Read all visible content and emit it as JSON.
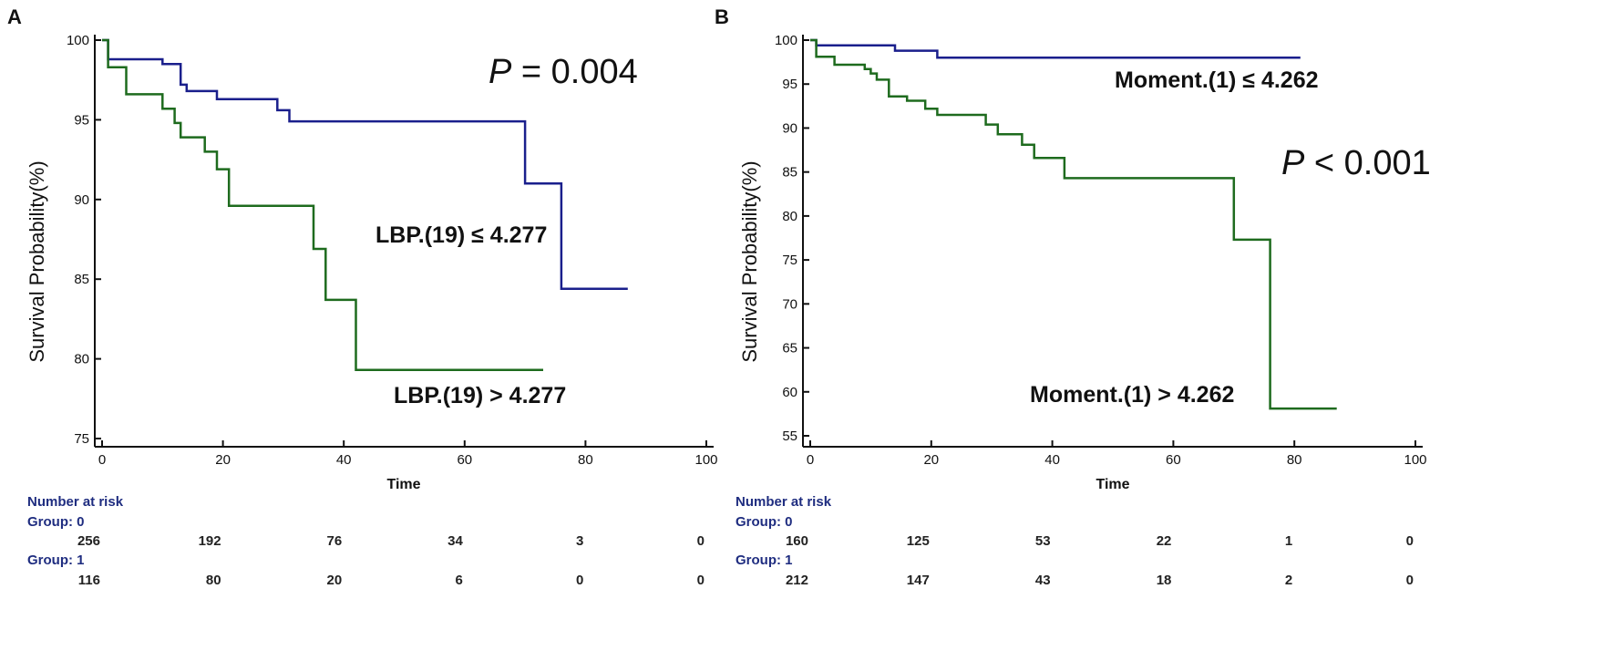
{
  "colors": {
    "group0": "#1a1f8c",
    "group1": "#1e6b1e",
    "axis": "#111111",
    "risk_header": "#1f2d80"
  },
  "chart_data": [
    {
      "type": "line",
      "panel": "A",
      "xlabel": "Time",
      "ylabel": "Survival Probability(%)",
      "xlim": [
        0,
        100
      ],
      "ylim": [
        75,
        100
      ],
      "xticks": [
        0,
        20,
        40,
        60,
        80,
        100
      ],
      "yticks": [
        75,
        80,
        85,
        90,
        95,
        100
      ],
      "p_value": {
        "prefix": "P",
        "text": " = 0.004"
      },
      "series": [
        {
          "name": "LBP.(19) ≤ 4.277",
          "group": 0,
          "points": [
            [
              0,
              100
            ],
            [
              1,
              100
            ],
            [
              1,
              98.8
            ],
            [
              10,
              98.8
            ],
            [
              10,
              98.5
            ],
            [
              13,
              98.5
            ],
            [
              13,
              97.2
            ],
            [
              14,
              97.2
            ],
            [
              14,
              96.8
            ],
            [
              19,
              96.8
            ],
            [
              19,
              96.3
            ],
            [
              29,
              96.3
            ],
            [
              29,
              95.6
            ],
            [
              31,
              95.6
            ],
            [
              31,
              94.9
            ],
            [
              70,
              94.9
            ],
            [
              70,
              91
            ],
            [
              76,
              91
            ],
            [
              76,
              84.4
            ],
            [
              87,
              84.4
            ]
          ]
        },
        {
          "name": "LBP.(19)  > 4.277",
          "group": 1,
          "points": [
            [
              0,
              100
            ],
            [
              1,
              100
            ],
            [
              1,
              98.3
            ],
            [
              4,
              98.3
            ],
            [
              4,
              96.6
            ],
            [
              10,
              96.6
            ],
            [
              10,
              95.7
            ],
            [
              12,
              95.7
            ],
            [
              12,
              94.8
            ],
            [
              13,
              94.8
            ],
            [
              13,
              93.9
            ],
            [
              17,
              93.9
            ],
            [
              17,
              93
            ],
            [
              19,
              93
            ],
            [
              19,
              91.9
            ],
            [
              21,
              91.9
            ],
            [
              21,
              89.6
            ],
            [
              35,
              89.6
            ],
            [
              35,
              86.9
            ],
            [
              37,
              86.9
            ],
            [
              37,
              83.7
            ],
            [
              42,
              83.7
            ],
            [
              42,
              79.3
            ],
            [
              73,
              79.3
            ]
          ]
        }
      ],
      "risk_table": {
        "title": "Number at risk",
        "times": [
          0,
          20,
          40,
          60,
          80,
          100
        ],
        "groups": [
          {
            "label": "Group: 0",
            "values": [
              "256",
              "192",
              "76",
              "34",
              "3",
              "0"
            ]
          },
          {
            "label": "Group: 1",
            "values": [
              "116",
              "80",
              "20",
              "6",
              "0",
              "0"
            ]
          }
        ]
      }
    },
    {
      "type": "line",
      "panel": "B",
      "xlabel": "Time",
      "ylabel": "Survival Probability(%)",
      "xlim": [
        0,
        100
      ],
      "ylim": [
        55,
        100
      ],
      "xticks": [
        0,
        20,
        40,
        60,
        80,
        100
      ],
      "yticks": [
        55,
        60,
        65,
        70,
        75,
        80,
        85,
        90,
        95,
        100
      ],
      "p_value": {
        "prefix": "P",
        "text": " < 0.001"
      },
      "series": [
        {
          "name": "Moment.(1) ≤ 4.262",
          "group": 0,
          "points": [
            [
              0,
              100
            ],
            [
              1,
              100
            ],
            [
              1,
              99.4
            ],
            [
              14,
              99.4
            ],
            [
              14,
              98.8
            ],
            [
              21,
              98.8
            ],
            [
              21,
              98
            ],
            [
              81,
              98
            ]
          ]
        },
        {
          "name": "Moment.(1)  >  4.262",
          "group": 1,
          "points": [
            [
              0,
              100
            ],
            [
              1,
              100
            ],
            [
              1,
              98.1
            ],
            [
              4,
              98.1
            ],
            [
              4,
              97.2
            ],
            [
              9,
              97.2
            ],
            [
              9,
              96.7
            ],
            [
              10,
              96.7
            ],
            [
              10,
              96.2
            ],
            [
              11,
              96.2
            ],
            [
              11,
              95.5
            ],
            [
              13,
              95.5
            ],
            [
              13,
              93.6
            ],
            [
              16,
              93.6
            ],
            [
              16,
              93.1
            ],
            [
              19,
              93.1
            ],
            [
              19,
              92.2
            ],
            [
              21,
              92.2
            ],
            [
              21,
              91.5
            ],
            [
              29,
              91.5
            ],
            [
              29,
              90.4
            ],
            [
              31,
              90.4
            ],
            [
              31,
              89.3
            ],
            [
              35,
              89.3
            ],
            [
              35,
              88.1
            ],
            [
              37,
              88.1
            ],
            [
              37,
              86.6
            ],
            [
              42,
              86.6
            ],
            [
              42,
              84.3
            ],
            [
              70,
              84.3
            ],
            [
              70,
              77.3
            ],
            [
              76,
              77.3
            ],
            [
              76,
              58.1
            ],
            [
              87,
              58.1
            ]
          ]
        }
      ],
      "risk_table": {
        "title": "Number at risk",
        "times": [
          0,
          20,
          40,
          60,
          80,
          100
        ],
        "groups": [
          {
            "label": "Group: 0",
            "values": [
              "160",
              "125",
              "53",
              "22",
              "1",
              "0"
            ]
          },
          {
            "label": "Group: 1",
            "values": [
              "212",
              "147",
              "43",
              "18",
              "2",
              "0"
            ]
          }
        ]
      }
    }
  ]
}
